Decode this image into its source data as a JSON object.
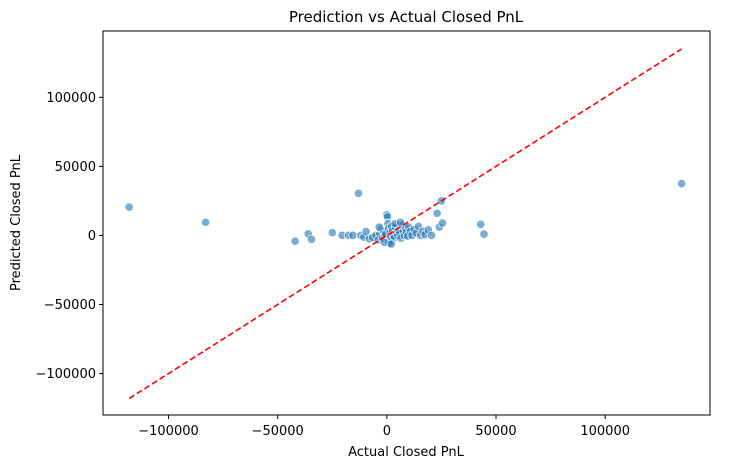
{
  "chart_data": {
    "type": "scatter",
    "title": "Prediction vs Actual Closed PnL",
    "xlabel": "Actual Closed PnL",
    "ylabel": "Predicted Closed PnL",
    "xlim": [
      -130000,
      148000
    ],
    "ylim": [
      -130000,
      148000
    ],
    "xticks": [
      -100000,
      -50000,
      0,
      50000,
      100000
    ],
    "yticks": [
      -100000,
      -50000,
      0,
      50000,
      100000
    ],
    "xtick_labels": [
      "−100000",
      "−50000",
      "0",
      "50000",
      "100000"
    ],
    "ytick_labels": [
      "−100000",
      "−50000",
      "0",
      "50000",
      "100000"
    ],
    "grid": false,
    "point_color": "#1f77b4",
    "reference_line": {
      "from": [
        -118000,
        -118000
      ],
      "to": [
        135000,
        135000
      ],
      "color": "#ff0000",
      "style": "dashed"
    },
    "points": [
      [
        -118000,
        20500
      ],
      [
        -83000,
        9500
      ],
      [
        -42000,
        -4200
      ],
      [
        -36000,
        1200
      ],
      [
        -34500,
        -2800
      ],
      [
        -25000,
        2000
      ],
      [
        -20500,
        0
      ],
      [
        -17500,
        0
      ],
      [
        -15500,
        0
      ],
      [
        -13000,
        30500
      ],
      [
        -12000,
        0
      ],
      [
        -10500,
        -1200
      ],
      [
        -9500,
        2800
      ],
      [
        -8000,
        -2500
      ],
      [
        -6500,
        -1500
      ],
      [
        -5000,
        0
      ],
      [
        -4000,
        -3200
      ],
      [
        -3200,
        1200
      ],
      [
        -2600,
        4500
      ],
      [
        -2000,
        -1800
      ],
      [
        -1500,
        3200
      ],
      [
        -1000,
        0
      ],
      [
        -500,
        1000
      ],
      [
        0,
        15000
      ],
      [
        300,
        13500
      ],
      [
        500,
        8500
      ],
      [
        800,
        5000
      ],
      [
        1000,
        -3500
      ],
      [
        1200,
        -5500
      ],
      [
        1500,
        2200
      ],
      [
        1800,
        -800
      ],
      [
        2200,
        6500
      ],
      [
        2600,
        3500
      ],
      [
        3000,
        200
      ],
      [
        3500,
        -1500
      ],
      [
        4000,
        5800
      ],
      [
        4500,
        2000
      ],
      [
        5000,
        0
      ],
      [
        5500,
        4000
      ],
      [
        6000,
        1500
      ],
      [
        6500,
        -2000
      ],
      [
        7000,
        7500
      ],
      [
        7500,
        3000
      ],
      [
        8000,
        0
      ],
      [
        8500,
        5500
      ],
      [
        9000,
        2500
      ],
      [
        9500,
        -500
      ],
      [
        10000,
        6000
      ],
      [
        10800,
        3000
      ],
      [
        11500,
        0
      ],
      [
        12500,
        4500
      ],
      [
        13500,
        1800
      ],
      [
        14500,
        6500
      ],
      [
        15500,
        0
      ],
      [
        16500,
        3000
      ],
      [
        17500,
        500
      ],
      [
        19000,
        4000
      ],
      [
        20500,
        0
      ],
      [
        23000,
        16000
      ],
      [
        24000,
        6000
      ],
      [
        25000,
        25000
      ],
      [
        25500,
        9000
      ],
      [
        43000,
        8000
      ],
      [
        44500,
        1000
      ],
      [
        135000,
        37500
      ],
      [
        -1200,
        -5000
      ],
      [
        2000,
        -6200
      ],
      [
        3800,
        8500
      ],
      [
        6200,
        9500
      ],
      [
        -3500,
        6000
      ]
    ]
  }
}
